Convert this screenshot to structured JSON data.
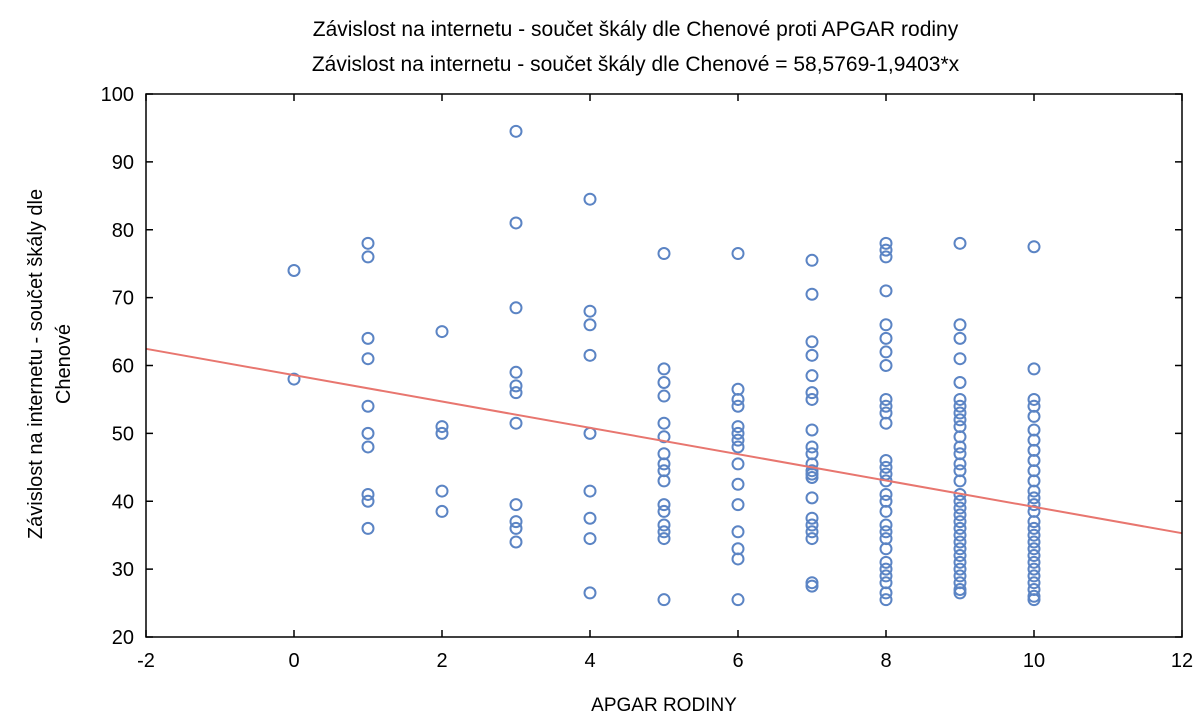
{
  "chart_data": {
    "type": "scatter",
    "title": "Závislost na internetu - součet škály dle Chenové proti APGAR rodiny",
    "subtitle": "Závislost na internetu - součet škály dle Chenové = 58,5769-1,9403*x",
    "xlabel": "APGAR RODINY",
    "ylabel_line1": "Závislost na internetu - součet škály dle",
    "ylabel_line2": "Chenové",
    "xlim": [
      -2,
      12
    ],
    "ylim": [
      20,
      100
    ],
    "xticks": [
      -2,
      0,
      2,
      4,
      6,
      8,
      10,
      12
    ],
    "yticks": [
      20,
      30,
      40,
      50,
      60,
      70,
      80,
      90,
      100
    ],
    "grid": false,
    "regression": {
      "intercept": 58.5769,
      "slope": -1.9403
    },
    "point_color": "#5b84c4",
    "line_color": "#e8766f",
    "points": [
      {
        "x": 0,
        "y": 74
      },
      {
        "x": 0,
        "y": 58
      },
      {
        "x": 1,
        "y": 78
      },
      {
        "x": 1,
        "y": 76
      },
      {
        "x": 1,
        "y": 64
      },
      {
        "x": 1,
        "y": 61
      },
      {
        "x": 1,
        "y": 54
      },
      {
        "x": 1,
        "y": 50
      },
      {
        "x": 1,
        "y": 48
      },
      {
        "x": 1,
        "y": 41
      },
      {
        "x": 1,
        "y": 40
      },
      {
        "x": 1,
        "y": 36
      },
      {
        "x": 2,
        "y": 65
      },
      {
        "x": 2,
        "y": 51
      },
      {
        "x": 2,
        "y": 50
      },
      {
        "x": 2,
        "y": 41.5
      },
      {
        "x": 2,
        "y": 38.5
      },
      {
        "x": 3,
        "y": 94.5
      },
      {
        "x": 3,
        "y": 81
      },
      {
        "x": 3,
        "y": 68.5
      },
      {
        "x": 3,
        "y": 59
      },
      {
        "x": 3,
        "y": 57
      },
      {
        "x": 3,
        "y": 56
      },
      {
        "x": 3,
        "y": 51.5
      },
      {
        "x": 3,
        "y": 39.5
      },
      {
        "x": 3,
        "y": 37
      },
      {
        "x": 3,
        "y": 36
      },
      {
        "x": 3,
        "y": 34
      },
      {
        "x": 4,
        "y": 84.5
      },
      {
        "x": 4,
        "y": 68
      },
      {
        "x": 4,
        "y": 66
      },
      {
        "x": 4,
        "y": 61.5
      },
      {
        "x": 4,
        "y": 50
      },
      {
        "x": 4,
        "y": 41.5
      },
      {
        "x": 4,
        "y": 37.5
      },
      {
        "x": 4,
        "y": 34.5
      },
      {
        "x": 4,
        "y": 26.5
      },
      {
        "x": 5,
        "y": 76.5
      },
      {
        "x": 5,
        "y": 59.5
      },
      {
        "x": 5,
        "y": 57.5
      },
      {
        "x": 5,
        "y": 55.5
      },
      {
        "x": 5,
        "y": 51.5
      },
      {
        "x": 5,
        "y": 49.5
      },
      {
        "x": 5,
        "y": 47
      },
      {
        "x": 5,
        "y": 45.5
      },
      {
        "x": 5,
        "y": 44.5
      },
      {
        "x": 5,
        "y": 43
      },
      {
        "x": 5,
        "y": 39.5
      },
      {
        "x": 5,
        "y": 38.5
      },
      {
        "x": 5,
        "y": 36.5
      },
      {
        "x": 5,
        "y": 35.5
      },
      {
        "x": 5,
        "y": 34.5
      },
      {
        "x": 5,
        "y": 25.5
      },
      {
        "x": 6,
        "y": 76.5
      },
      {
        "x": 6,
        "y": 56.5
      },
      {
        "x": 6,
        "y": 55
      },
      {
        "x": 6,
        "y": 54
      },
      {
        "x": 6,
        "y": 51
      },
      {
        "x": 6,
        "y": 50
      },
      {
        "x": 6,
        "y": 49
      },
      {
        "x": 6,
        "y": 48
      },
      {
        "x": 6,
        "y": 45.5
      },
      {
        "x": 6,
        "y": 42.5
      },
      {
        "x": 6,
        "y": 39.5
      },
      {
        "x": 6,
        "y": 35.5
      },
      {
        "x": 6,
        "y": 33
      },
      {
        "x": 6,
        "y": 31.5
      },
      {
        "x": 6,
        "y": 25.5
      },
      {
        "x": 7,
        "y": 75.5
      },
      {
        "x": 7,
        "y": 70.5
      },
      {
        "x": 7,
        "y": 63.5
      },
      {
        "x": 7,
        "y": 61.5
      },
      {
        "x": 7,
        "y": 58.5
      },
      {
        "x": 7,
        "y": 56
      },
      {
        "x": 7,
        "y": 55
      },
      {
        "x": 7,
        "y": 50.5
      },
      {
        "x": 7,
        "y": 48
      },
      {
        "x": 7,
        "y": 47
      },
      {
        "x": 7,
        "y": 45.5
      },
      {
        "x": 7,
        "y": 44.5
      },
      {
        "x": 7,
        "y": 44
      },
      {
        "x": 7,
        "y": 43.5
      },
      {
        "x": 7,
        "y": 40.5
      },
      {
        "x": 7,
        "y": 37.5
      },
      {
        "x": 7,
        "y": 36.5
      },
      {
        "x": 7,
        "y": 35.5
      },
      {
        "x": 7,
        "y": 34.5
      },
      {
        "x": 7,
        "y": 28
      },
      {
        "x": 7,
        "y": 27.5
      },
      {
        "x": 8,
        "y": 78
      },
      {
        "x": 8,
        "y": 77
      },
      {
        "x": 8,
        "y": 76
      },
      {
        "x": 8,
        "y": 71
      },
      {
        "x": 8,
        "y": 66
      },
      {
        "x": 8,
        "y": 64
      },
      {
        "x": 8,
        "y": 62
      },
      {
        "x": 8,
        "y": 60
      },
      {
        "x": 8,
        "y": 55
      },
      {
        "x": 8,
        "y": 54
      },
      {
        "x": 8,
        "y": 53
      },
      {
        "x": 8,
        "y": 51.5
      },
      {
        "x": 8,
        "y": 46
      },
      {
        "x": 8,
        "y": 45
      },
      {
        "x": 8,
        "y": 44
      },
      {
        "x": 8,
        "y": 43
      },
      {
        "x": 8,
        "y": 41
      },
      {
        "x": 8,
        "y": 40
      },
      {
        "x": 8,
        "y": 38.5
      },
      {
        "x": 8,
        "y": 36.5
      },
      {
        "x": 8,
        "y": 35.5
      },
      {
        "x": 8,
        "y": 34.5
      },
      {
        "x": 8,
        "y": 33
      },
      {
        "x": 8,
        "y": 31
      },
      {
        "x": 8,
        "y": 30
      },
      {
        "x": 8,
        "y": 29
      },
      {
        "x": 8,
        "y": 28
      },
      {
        "x": 8,
        "y": 26.5
      },
      {
        "x": 8,
        "y": 25.5
      },
      {
        "x": 9,
        "y": 78
      },
      {
        "x": 9,
        "y": 66
      },
      {
        "x": 9,
        "y": 64
      },
      {
        "x": 9,
        "y": 61
      },
      {
        "x": 9,
        "y": 57.5
      },
      {
        "x": 9,
        "y": 55
      },
      {
        "x": 9,
        "y": 54
      },
      {
        "x": 9,
        "y": 53
      },
      {
        "x": 9,
        "y": 52
      },
      {
        "x": 9,
        "y": 51
      },
      {
        "x": 9,
        "y": 49.5
      },
      {
        "x": 9,
        "y": 48
      },
      {
        "x": 9,
        "y": 47
      },
      {
        "x": 9,
        "y": 45.5
      },
      {
        "x": 9,
        "y": 44.5
      },
      {
        "x": 9,
        "y": 43
      },
      {
        "x": 9,
        "y": 41
      },
      {
        "x": 9,
        "y": 40
      },
      {
        "x": 9,
        "y": 39
      },
      {
        "x": 9,
        "y": 38
      },
      {
        "x": 9,
        "y": 37
      },
      {
        "x": 9,
        "y": 36
      },
      {
        "x": 9,
        "y": 35
      },
      {
        "x": 9,
        "y": 34
      },
      {
        "x": 9,
        "y": 33
      },
      {
        "x": 9,
        "y": 32
      },
      {
        "x": 9,
        "y": 31
      },
      {
        "x": 9,
        "y": 30
      },
      {
        "x": 9,
        "y": 29
      },
      {
        "x": 9,
        "y": 28
      },
      {
        "x": 9,
        "y": 27
      },
      {
        "x": 9,
        "y": 26.5
      },
      {
        "x": 10,
        "y": 77.5
      },
      {
        "x": 10,
        "y": 59.5
      },
      {
        "x": 10,
        "y": 55
      },
      {
        "x": 10,
        "y": 54
      },
      {
        "x": 10,
        "y": 52.5
      },
      {
        "x": 10,
        "y": 50.5
      },
      {
        "x": 10,
        "y": 49
      },
      {
        "x": 10,
        "y": 47.5
      },
      {
        "x": 10,
        "y": 46
      },
      {
        "x": 10,
        "y": 44.5
      },
      {
        "x": 10,
        "y": 43
      },
      {
        "x": 10,
        "y": 41.5
      },
      {
        "x": 10,
        "y": 40.5
      },
      {
        "x": 10,
        "y": 39.5
      },
      {
        "x": 10,
        "y": 38.5
      },
      {
        "x": 10,
        "y": 37
      },
      {
        "x": 10,
        "y": 36
      },
      {
        "x": 10,
        "y": 35
      },
      {
        "x": 10,
        "y": 34
      },
      {
        "x": 10,
        "y": 33
      },
      {
        "x": 10,
        "y": 32
      },
      {
        "x": 10,
        "y": 31
      },
      {
        "x": 10,
        "y": 30
      },
      {
        "x": 10,
        "y": 29
      },
      {
        "x": 10,
        "y": 28
      },
      {
        "x": 10,
        "y": 27
      },
      {
        "x": 10,
        "y": 26
      },
      {
        "x": 10,
        "y": 25.5
      }
    ]
  }
}
